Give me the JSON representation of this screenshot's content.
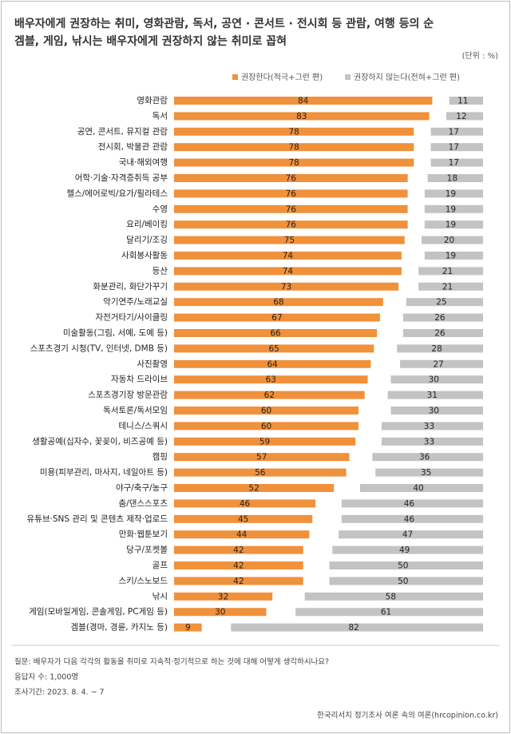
{
  "chart_data": {
    "type": "diverging-bar",
    "title": [
      "배우자에게 권장하는 취미, 영화관람, 독서, 공연 · 콘서트 · 전시회 등 관람, 여행 등의 순",
      "겜블, 게임, 낚시는 배우자에게 권장하지 않는 취미로 꼽혀"
    ],
    "unit": "(단위 : %)",
    "categories": [
      "영화관람",
      "독서",
      "공연, 콘서트, 뮤지컬 관람",
      "전시회, 박물관 관람",
      "국내·해외여행",
      "어학·기술·자격증취득 공부",
      "헬스/에어로빅/요가/필라테스",
      "수영",
      "요리/베이킹",
      "달리기/조깅",
      "사회봉사활동",
      "등산",
      "화분관리, 화단가꾸기",
      "악기연주/노래교실",
      "자전거타기/사이클링",
      "미술활동(그림, 서예, 도예 등)",
      "스포츠경기 시청(TV, 인터넷, DMB 등)",
      "사진촬영",
      "자동차 드라이브",
      "스포츠경기장 방문관람",
      "독서토론/독서모임",
      "테니스/스쿼시",
      "생활공예(십자수, 꽃꽂이, 비즈공예 등)",
      "캠핑",
      "미용(피부관리, 마사지, 네일아트 등)",
      "야구/축구/농구",
      "춤/댄스스포츠",
      "유튜브·SNS 관리 및 콘텐츠 제작·업로드",
      "만화·웹툰보기",
      "당구/포켓볼",
      "골프",
      "스키/스노보드",
      "낚시",
      "게임(모바일게임, 콘솔게임, PC게임 등)",
      "겜블(경마, 경륜, 카지노 등)"
    ],
    "series": [
      {
        "name": "권장한다(적극+그런 편)",
        "color": "#f0913b",
        "values": [
          84,
          83,
          78,
          78,
          78,
          76,
          76,
          76,
          76,
          75,
          74,
          74,
          73,
          68,
          67,
          66,
          65,
          64,
          63,
          62,
          60,
          60,
          59,
          57,
          56,
          52,
          46,
          45,
          44,
          42,
          42,
          42,
          32,
          30,
          9
        ]
      },
      {
        "name": "권장하지 않는다(전혀+그런 편)",
        "color": "#c3c3c3",
        "values": [
          11,
          12,
          17,
          17,
          17,
          18,
          19,
          19,
          19,
          20,
          19,
          21,
          21,
          25,
          26,
          26,
          28,
          27,
          30,
          31,
          30,
          33,
          33,
          36,
          35,
          40,
          46,
          46,
          47,
          49,
          50,
          50,
          58,
          61,
          82
        ]
      }
    ],
    "notes": [
      "질문: 배우자가 다음 각각의 활동을 취미로 지속적·정기적으로 하는 것에 대해 어떻게 생각하시나요?",
      "응답자 수: 1,000명",
      "조사기간: 2023. 8. 4. ~ 7"
    ],
    "source": "한국리서치 정기조사 여론 속의 여론(hrcopinion.co.kr)"
  }
}
